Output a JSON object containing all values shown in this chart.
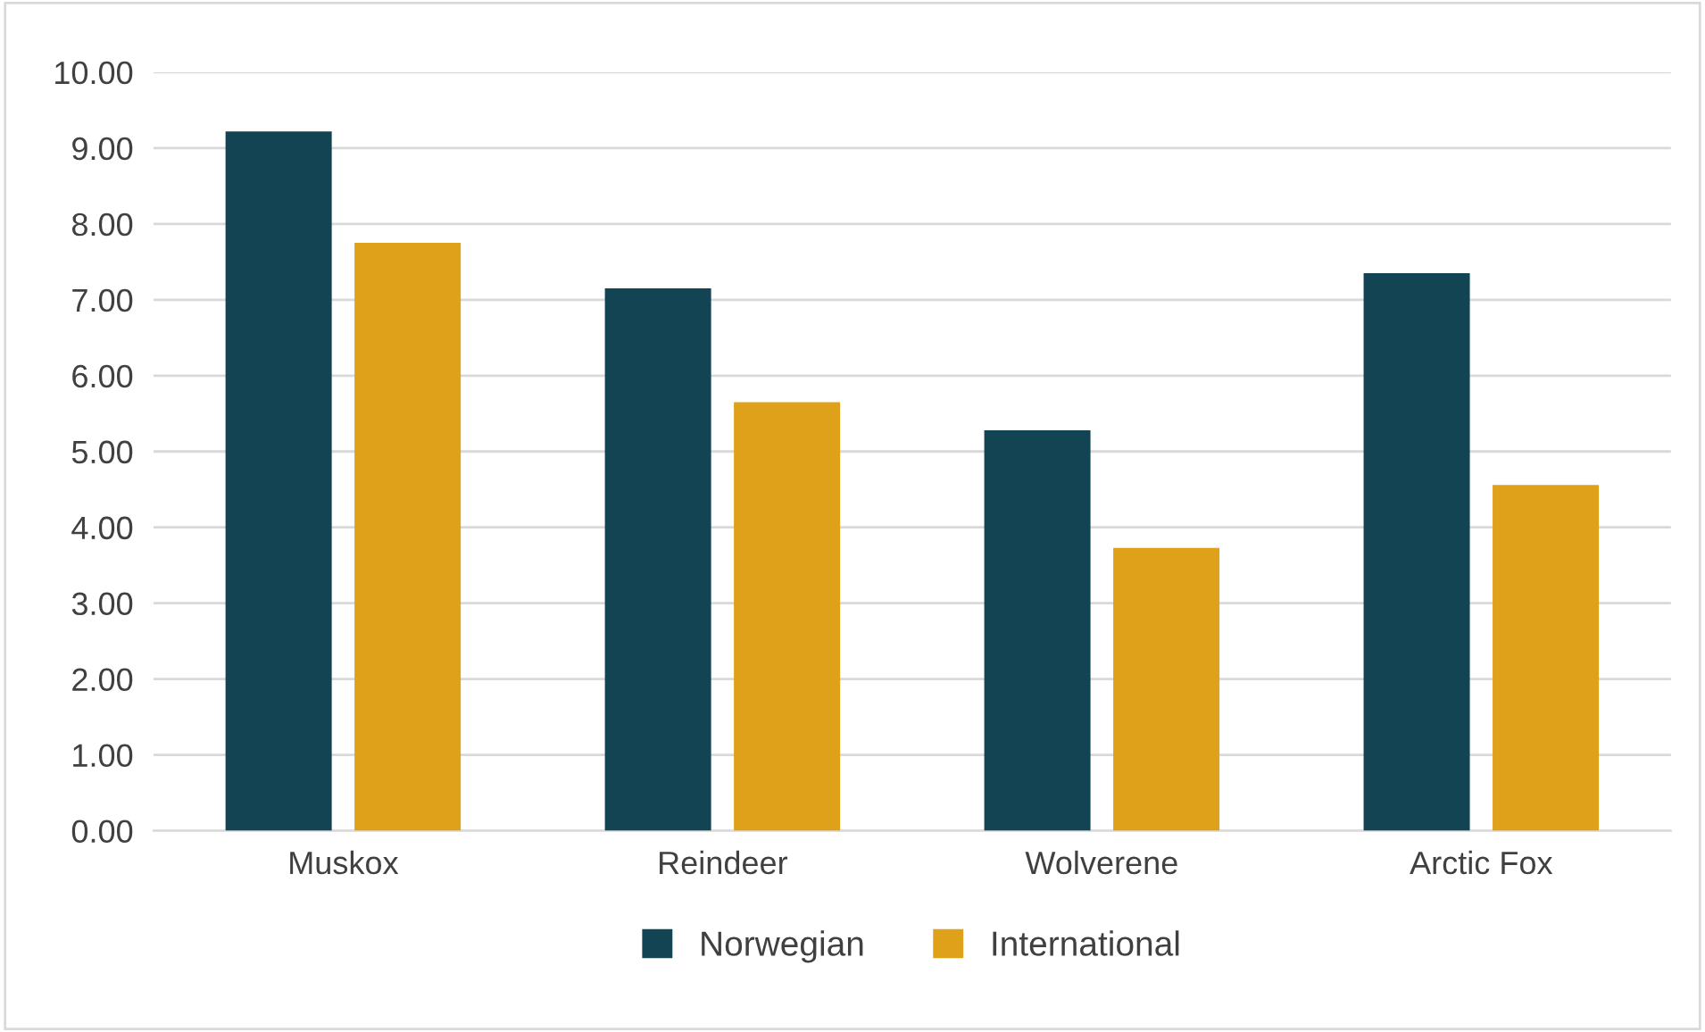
{
  "chart_data": {
    "type": "bar",
    "categories": [
      "Muskox",
      "Reindeer",
      "Wolverene",
      "Arctic Fox"
    ],
    "series": [
      {
        "name": "Norwegian",
        "color": "#134453",
        "values": [
          9.22,
          7.15,
          5.28,
          7.35
        ]
      },
      {
        "name": "International",
        "color": "#e0a11a",
        "values": [
          7.75,
          5.65,
          3.73,
          4.56
        ]
      }
    ],
    "ylim": [
      0,
      10
    ],
    "yticks": [
      {
        "value": 0,
        "label": "0.00"
      },
      {
        "value": 1,
        "label": "1.00"
      },
      {
        "value": 2,
        "label": "2.00"
      },
      {
        "value": 3,
        "label": "3.00"
      },
      {
        "value": 4,
        "label": "4.00"
      },
      {
        "value": 5,
        "label": "5.00"
      },
      {
        "value": 6,
        "label": "6.00"
      },
      {
        "value": 7,
        "label": "7.00"
      },
      {
        "value": 8,
        "label": "8.00"
      },
      {
        "value": 9,
        "label": "9.00"
      },
      {
        "value": 10,
        "label": "10.00"
      }
    ],
    "grid": "y",
    "legend": "bottom"
  }
}
